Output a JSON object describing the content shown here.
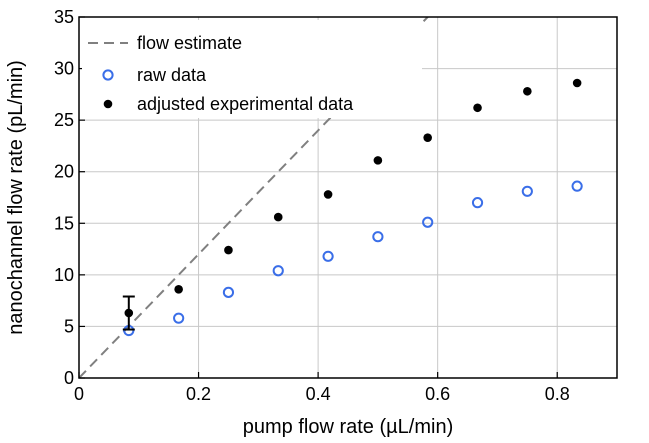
{
  "chart_data": {
    "type": "scatter",
    "title": "",
    "xlabel": "pump flow rate (µL/min)",
    "ylabel": "nanochannel flow rate (pL/min)",
    "xlim": [
      0,
      0.9
    ],
    "ylim": [
      0,
      35
    ],
    "x_ticks": [
      0,
      0.2,
      0.4,
      0.6,
      0.8
    ],
    "x_tick_labels": [
      "0",
      "0.2",
      "0.4",
      "0.6",
      "0.8"
    ],
    "y_ticks": [
      0,
      5,
      10,
      15,
      20,
      25,
      30,
      35
    ],
    "y_tick_labels": [
      "0",
      "5",
      "10",
      "15",
      "20",
      "25",
      "30",
      "35"
    ],
    "grid": true,
    "legend_position": "top-left",
    "series": [
      {
        "name": "flow estimate",
        "kind": "line",
        "style": "dashed",
        "color": "#808080",
        "x": [
          0,
          0.9
        ],
        "y": [
          0,
          54
        ]
      },
      {
        "name": "raw data",
        "kind": "scatter",
        "marker": "open-circle",
        "color": "#3a6ee8",
        "x": [
          0.0833,
          0.1667,
          0.25,
          0.3333,
          0.4167,
          0.5,
          0.5833,
          0.6667,
          0.75,
          0.8333
        ],
        "y": [
          4.6,
          5.8,
          8.3,
          10.4,
          11.8,
          13.7,
          15.1,
          17.0,
          18.1,
          18.6
        ]
      },
      {
        "name": "adjusted experimental data",
        "kind": "scatter",
        "marker": "filled-circle",
        "color": "#000000",
        "x": [
          0.0833,
          0.1667,
          0.25,
          0.3333,
          0.4167,
          0.5,
          0.5833,
          0.6667,
          0.75,
          0.8333
        ],
        "y": [
          6.3,
          8.6,
          12.4,
          15.6,
          17.8,
          21.1,
          23.3,
          26.2,
          27.8,
          28.6
        ],
        "error_bars": [
          {
            "x": 0.0833,
            "low": 4.7,
            "high": 7.9
          }
        ]
      }
    ]
  }
}
